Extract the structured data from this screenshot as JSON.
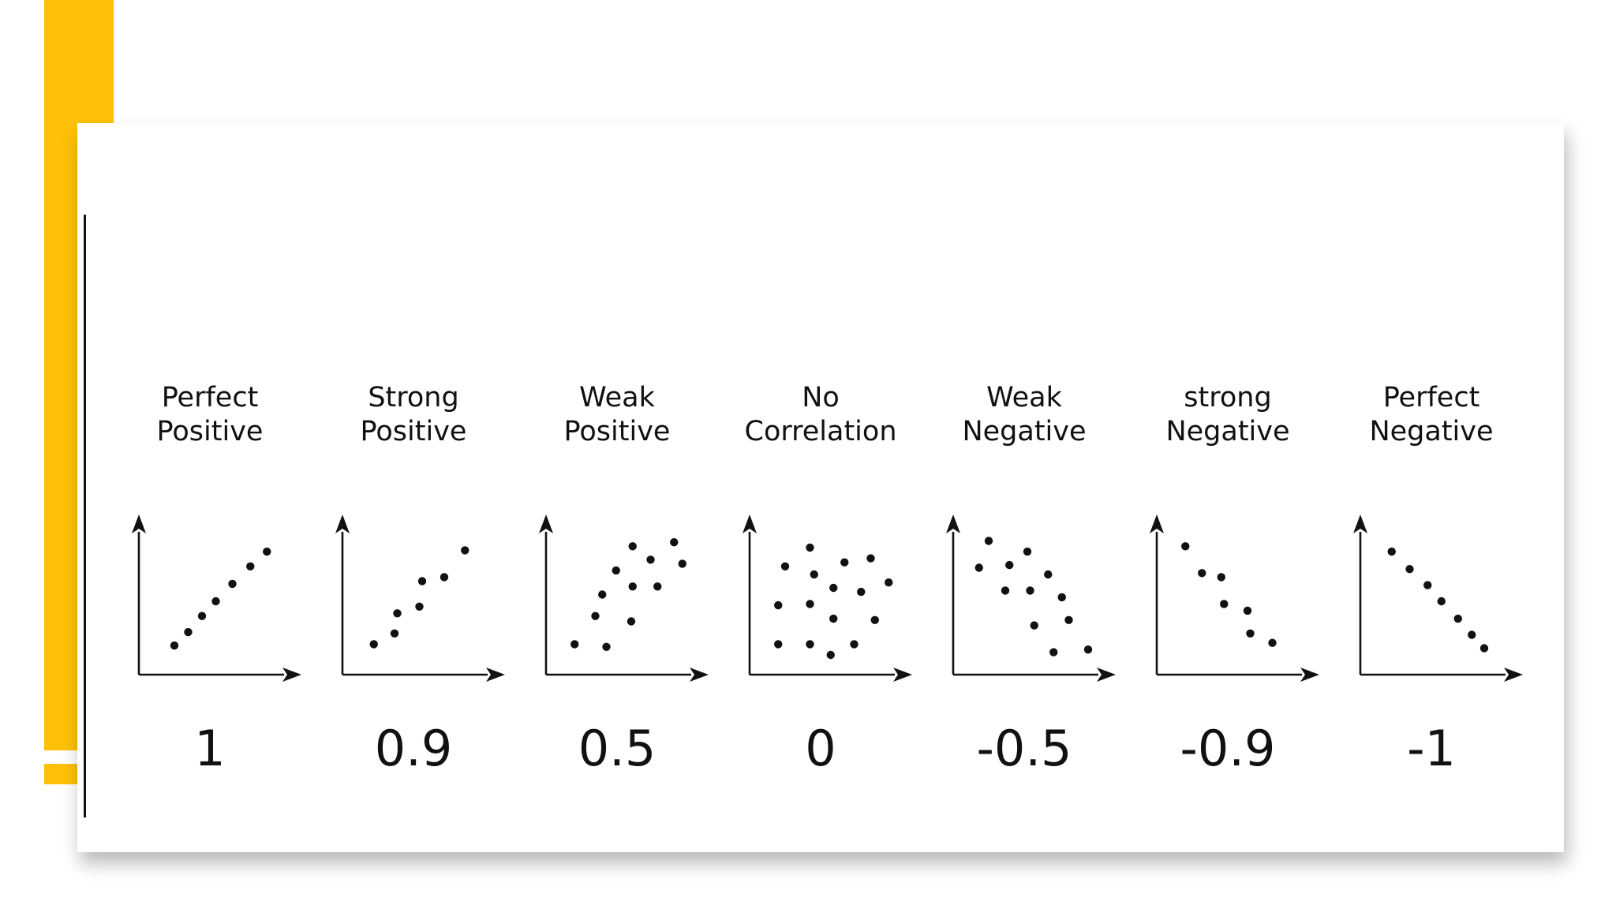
{
  "colors": {
    "accent": "#FFC107",
    "ink": "#111111",
    "card": "#ffffff"
  },
  "chart_data": [
    {
      "type": "scatter",
      "title": [
        "Perfect",
        "Positive"
      ],
      "value_label": "1",
      "points": [
        [
          0.2,
          0.17
        ],
        [
          0.3,
          0.27
        ],
        [
          0.4,
          0.39
        ],
        [
          0.5,
          0.5
        ],
        [
          0.62,
          0.63
        ],
        [
          0.75,
          0.76
        ],
        [
          0.87,
          0.87
        ]
      ]
    },
    {
      "type": "scatter",
      "title": [
        "Strong",
        "Positive"
      ],
      "value_label": "0.9",
      "points": [
        [
          0.17,
          0.18
        ],
        [
          0.32,
          0.26
        ],
        [
          0.34,
          0.41
        ],
        [
          0.5,
          0.46
        ],
        [
          0.52,
          0.65
        ],
        [
          0.68,
          0.68
        ],
        [
          0.83,
          0.88
        ]
      ]
    },
    {
      "type": "scatter",
      "title": [
        "Weak",
        "Positive"
      ],
      "value_label": "0.5",
      "points": [
        [
          0.15,
          0.18
        ],
        [
          0.38,
          0.16
        ],
        [
          0.3,
          0.39
        ],
        [
          0.35,
          0.55
        ],
        [
          0.45,
          0.73
        ],
        [
          0.56,
          0.35
        ],
        [
          0.57,
          0.61
        ],
        [
          0.57,
          0.91
        ],
        [
          0.7,
          0.81
        ],
        [
          0.75,
          0.61
        ],
        [
          0.87,
          0.94
        ],
        [
          0.93,
          0.78
        ]
      ]
    },
    {
      "type": "scatter",
      "title": [
        "No",
        "Correlation"
      ],
      "value_label": "0",
      "points": [
        [
          0.15,
          0.18
        ],
        [
          0.15,
          0.47
        ],
        [
          0.2,
          0.76
        ],
        [
          0.38,
          0.18
        ],
        [
          0.38,
          0.48
        ],
        [
          0.38,
          0.9
        ],
        [
          0.41,
          0.7
        ],
        [
          0.53,
          0.1
        ],
        [
          0.55,
          0.37
        ],
        [
          0.55,
          0.6
        ],
        [
          0.63,
          0.79
        ],
        [
          0.7,
          0.18
        ],
        [
          0.75,
          0.57
        ],
        [
          0.82,
          0.82
        ],
        [
          0.85,
          0.36
        ],
        [
          0.95,
          0.64
        ]
      ]
    },
    {
      "type": "scatter",
      "title": [
        "Weak",
        "Negative"
      ],
      "value_label": "-0.5",
      "points": [
        [
          0.13,
          0.75
        ],
        [
          0.2,
          0.95
        ],
        [
          0.35,
          0.77
        ],
        [
          0.32,
          0.58
        ],
        [
          0.48,
          0.87
        ],
        [
          0.5,
          0.58
        ],
        [
          0.53,
          0.32
        ],
        [
          0.63,
          0.7
        ],
        [
          0.67,
          0.12
        ],
        [
          0.73,
          0.53
        ],
        [
          0.78,
          0.36
        ],
        [
          0.92,
          0.14
        ]
      ]
    },
    {
      "type": "scatter",
      "title": [
        "strong",
        "Negative"
      ],
      "value_label": "-0.9",
      "points": [
        [
          0.15,
          0.91
        ],
        [
          0.27,
          0.71
        ],
        [
          0.41,
          0.68
        ],
        [
          0.43,
          0.48
        ],
        [
          0.6,
          0.43
        ],
        [
          0.62,
          0.26
        ],
        [
          0.78,
          0.19
        ]
      ]
    },
    {
      "type": "scatter",
      "title": [
        "Perfect",
        "Negative"
      ],
      "value_label": "-1",
      "points": [
        [
          0.17,
          0.87
        ],
        [
          0.3,
          0.74
        ],
        [
          0.43,
          0.62
        ],
        [
          0.53,
          0.5
        ],
        [
          0.65,
          0.37
        ],
        [
          0.75,
          0.25
        ],
        [
          0.84,
          0.15
        ]
      ]
    }
  ]
}
